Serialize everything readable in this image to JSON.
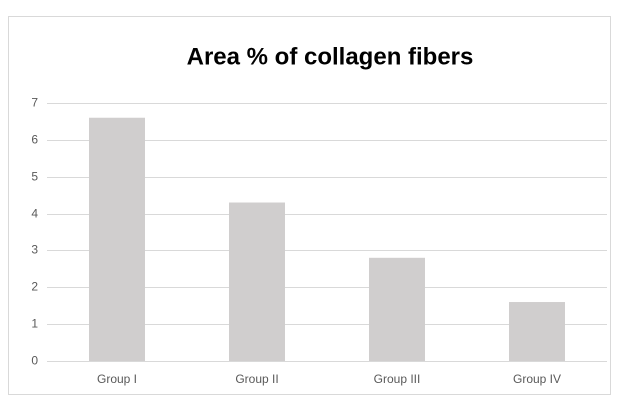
{
  "chart_data": {
    "type": "bar",
    "title": "Area % of collagen fibers",
    "categories": [
      "Group I",
      "Group II",
      "Group III",
      "Group IV"
    ],
    "values": [
      6.6,
      4.3,
      2.8,
      1.6
    ],
    "color": "#d0cece",
    "ylim": [
      0,
      7
    ],
    "yticks": [
      0,
      1,
      2,
      3,
      4,
      5,
      6,
      7
    ],
    "grid": true
  }
}
